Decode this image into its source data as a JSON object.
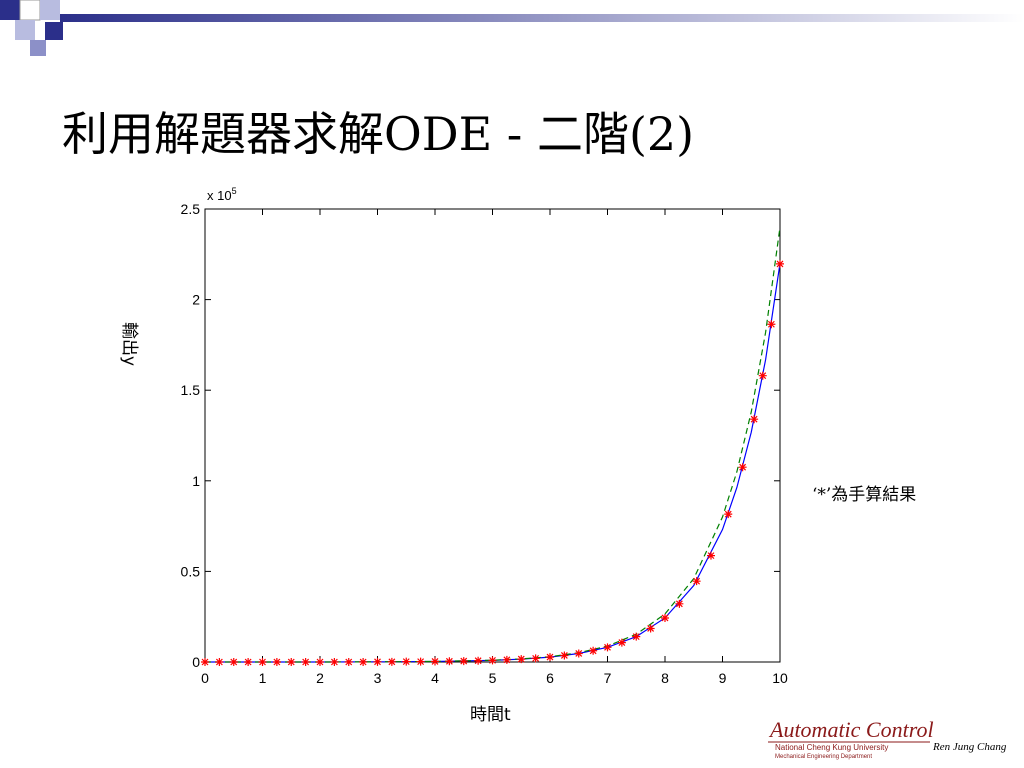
{
  "slide_title": "利用解題器求解ODE - 二階(2)",
  "chart_data": {
    "type": "line",
    "x_label": "時間t",
    "y_label": "輸出y",
    "y_exponent": {
      "base": "x 10",
      "power": "5"
    },
    "xlim": [
      0,
      10
    ],
    "ylim": [
      0,
      2.5
    ],
    "xticks": [
      0,
      1,
      2,
      3,
      4,
      5,
      6,
      7,
      8,
      9,
      10
    ],
    "yticks": [
      0,
      0.5,
      1,
      1.5,
      2,
      2.5
    ],
    "grid": false,
    "series": [
      {
        "color": "#0000ff",
        "style": "solid",
        "x": [
          0,
          1,
          2,
          3,
          4,
          5,
          5.5,
          6,
          6.5,
          7,
          7.5,
          8,
          8.5,
          9,
          9.25,
          9.5,
          9.75,
          10
        ],
        "values": [
          0,
          0,
          0,
          0.001,
          0.003,
          0.009,
          0.016,
          0.027,
          0.047,
          0.081,
          0.14,
          0.243,
          0.422,
          0.731,
          0.963,
          1.268,
          1.669,
          2.2
        ]
      },
      {
        "color": "#008000",
        "style": "dashed",
        "x": [
          0,
          1,
          2,
          3,
          4,
          5,
          5.5,
          6,
          6.5,
          7,
          7.5,
          8,
          8.5,
          9,
          9.25,
          9.5,
          9.75,
          10
        ],
        "values": [
          0,
          0,
          0,
          0.001,
          0.003,
          0.01,
          0.017,
          0.029,
          0.051,
          0.088,
          0.153,
          0.265,
          0.46,
          0.8,
          1.05,
          1.38,
          1.82,
          2.4
        ]
      },
      {
        "color": "#ff0000",
        "style": "marker",
        "x": [
          0,
          0.25,
          0.5,
          0.75,
          1,
          1.25,
          1.5,
          1.75,
          2,
          2.25,
          2.5,
          2.75,
          3,
          3.25,
          3.5,
          3.75,
          4,
          4.25,
          4.5,
          4.75,
          5,
          5.25,
          5.5,
          5.75,
          6,
          6.25,
          6.5,
          6.75,
          7,
          7.25,
          7.5,
          7.75,
          8,
          8.25,
          8.55,
          8.8,
          9.1,
          9.35,
          9.55,
          9.7,
          9.85,
          10
        ],
        "values": [
          0,
          0,
          0,
          0,
          0,
          0,
          0,
          0,
          0,
          0,
          0,
          0,
          0.001,
          0.001,
          0.002,
          0.002,
          0.003,
          0.004,
          0.005,
          0.007,
          0.009,
          0.012,
          0.016,
          0.02,
          0.027,
          0.036,
          0.047,
          0.062,
          0.081,
          0.107,
          0.14,
          0.185,
          0.243,
          0.321,
          0.446,
          0.587,
          0.816,
          1.075,
          1.34,
          1.58,
          1.864,
          2.197
        ]
      }
    ]
  },
  "annotation": "‘*’為手算結果",
  "logo": {
    "title": "Automatic Control",
    "line1": "National Cheng Kung University",
    "line2": "Mechanical Engineering Department",
    "author": "Ren Jung Chang"
  }
}
